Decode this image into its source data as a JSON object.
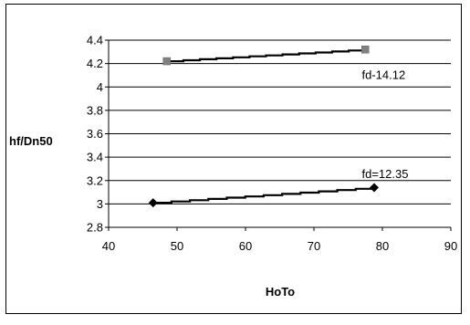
{
  "chart_data": {
    "type": "line",
    "title": "",
    "xlabel": "HoTo",
    "ylabel": "hf/Dn50",
    "xlim": [
      40,
      90
    ],
    "ylim": [
      2.8,
      4.4
    ],
    "xticks": [
      "40",
      "50",
      "60",
      "70",
      "80",
      "90"
    ],
    "yticks": [
      "2.8",
      "3",
      "3.2",
      "3.4",
      "3.6",
      "3.8",
      "4",
      "4.2",
      "4.4"
    ],
    "grid": "horizontal",
    "series": [
      {
        "color": "#808080",
        "marker": "square",
        "x": [
          48.5,
          77.5
        ],
        "y": [
          4.22,
          4.32
        ]
      },
      {
        "color": "#000000",
        "marker": "diamond",
        "x": [
          46.5,
          78.8
        ],
        "y": [
          3.01,
          3.14
        ]
      }
    ],
    "annotations": [
      {
        "text": "fd-14.12",
        "x": 77.0,
        "y": 4.07
      },
      {
        "text": "fd=12.35",
        "x": 77.0,
        "y": 3.22
      }
    ]
  }
}
